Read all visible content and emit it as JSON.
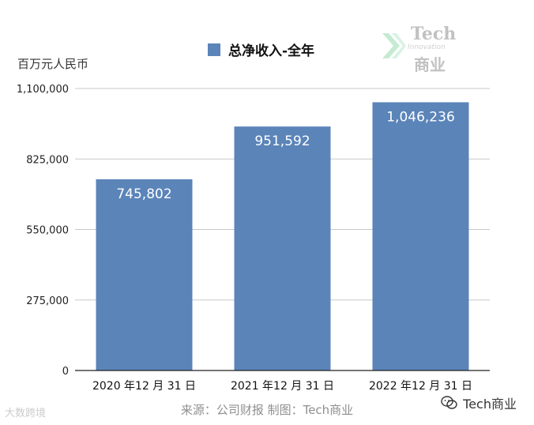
{
  "chart_data": {
    "type": "bar",
    "y_unit": "百万元人民币",
    "legend": "总净收入-全年",
    "categories": [
      "2020 年12 月 31 日",
      "2021 年12 月 31 日",
      "2022 年12 月 31 日"
    ],
    "series": [
      {
        "name": "总净收入-全年",
        "values": [
          745802,
          951592,
          1046236
        ],
        "labels": [
          "745,802",
          "951,592",
          "1,046,236"
        ]
      }
    ],
    "ylim": [
      0,
      1100000
    ],
    "yticks": [
      0,
      275000,
      550000,
      825000,
      1100000
    ],
    "ytick_labels": [
      "0",
      "275,000",
      "550,000",
      "825,000",
      "1,100,000"
    ],
    "grid": true,
    "legend_position": "top-center",
    "bar_color": "#5b84b9"
  },
  "logo": {
    "line1": "Tech",
    "line2": "Innovation",
    "line3": "商业"
  },
  "source_note": "来源：公司财报 制图：Tech商业",
  "watermark_left": "大数跨境",
  "watermark_right": "Tech商业"
}
